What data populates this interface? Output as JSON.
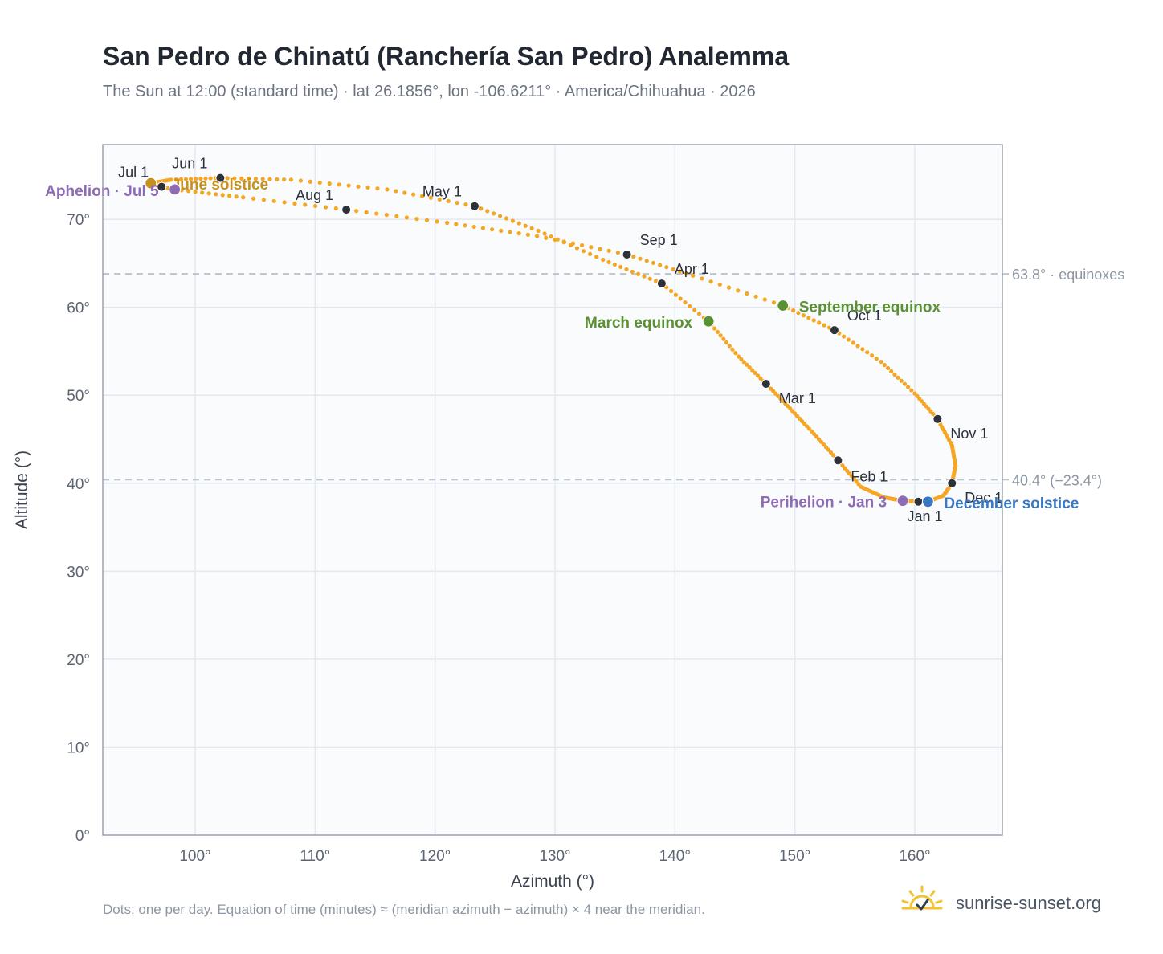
{
  "title": "San Pedro de Chinatú (Ranchería San Pedro) Analemma",
  "subtitle": "The Sun at 12:00 (standard time) · lat 26.1856°, lon -106.6211° · America/Chihuahua · 2026",
  "footnote": "Dots: one per day. Equation of time (minutes) ≈ (meridian azimuth − azimuth) × 4 near the meridian.",
  "brand": {
    "text": "sunrise-sunset.org",
    "icon": "sun-check-icon"
  },
  "chart_data": {
    "type": "scatter",
    "xlabel": "Azimuth (°)",
    "ylabel": "Altitude (°)",
    "xlim": [
      92.3,
      167.3
    ],
    "ylim": [
      0,
      78.5
    ],
    "x_ticks": [
      100,
      110,
      120,
      130,
      140,
      150,
      160
    ],
    "y_ticks": [
      0,
      10,
      20,
      30,
      40,
      50,
      60,
      70
    ],
    "tick_suffix": "°",
    "grid": true,
    "colors": {
      "path": "#f5a623",
      "month_marker": "#2d3139",
      "equinox": "#5a9132",
      "june_solstice": "#c8901c",
      "december_solstice": "#3a78c3",
      "apsis": "#8e6bb5",
      "reference_line": "#b8c4d0",
      "plot_background": "#f9fbfd",
      "frame": "#9aa5b4"
    },
    "reference_lines": [
      {
        "y": 63.8,
        "label": "63.8° · equinoxes"
      },
      {
        "y": 40.4,
        "label": "40.4° (−23.4°)"
      }
    ],
    "months": [
      {
        "label": "Jan 1",
        "az": 160.3,
        "alt": 37.9
      },
      {
        "label": "Feb 1",
        "az": 153.6,
        "alt": 42.6
      },
      {
        "label": "Mar 1",
        "az": 147.6,
        "alt": 51.3
      },
      {
        "label": "Apr 1",
        "az": 138.9,
        "alt": 62.7
      },
      {
        "label": "May 1",
        "az": 123.3,
        "alt": 71.5
      },
      {
        "label": "Jun 1",
        "az": 102.1,
        "alt": 74.7
      },
      {
        "label": "Jul 1",
        "az": 97.2,
        "alt": 73.7
      },
      {
        "label": "Aug 1",
        "az": 112.6,
        "alt": 71.1
      },
      {
        "label": "Sep 1",
        "az": 136.0,
        "alt": 66.0
      },
      {
        "label": "Oct 1",
        "az": 153.3,
        "alt": 57.4
      },
      {
        "label": "Nov 1",
        "az": 161.9,
        "alt": 47.3
      },
      {
        "label": "Dec 1",
        "az": 163.1,
        "alt": 40.0
      }
    ],
    "events": [
      {
        "label": "March equinox",
        "az": 142.8,
        "alt": 58.4,
        "color_key": "equinox"
      },
      {
        "label": "September equinox",
        "az": 149.0,
        "alt": 60.2,
        "color_key": "equinox"
      },
      {
        "label": "June solstice",
        "az": 96.3,
        "alt": 74.1,
        "color_key": "june_solstice"
      },
      {
        "label": "December solstice",
        "az": 161.1,
        "alt": 37.9,
        "color_key": "december_solstice"
      },
      {
        "label": "Aphelion · Jul 5",
        "az": 98.3,
        "alt": 73.4,
        "color_key": "apsis"
      },
      {
        "label": "Perihelion · Jan 3",
        "az": 159.0,
        "alt": 38.0,
        "color_key": "apsis"
      }
    ],
    "daily_path": [
      [
        160.3,
        37.9
      ],
      [
        159.0,
        38.0
      ],
      [
        157.4,
        38.4
      ],
      [
        155.5,
        39.6
      ],
      [
        153.6,
        42.6
      ],
      [
        151.6,
        45.6
      ],
      [
        149.6,
        48.5
      ],
      [
        147.6,
        51.3
      ],
      [
        145.3,
        54.4
      ],
      [
        142.8,
        58.4
      ],
      [
        138.9,
        62.7
      ],
      [
        134.0,
        65.4
      ],
      [
        128.6,
        68.7
      ],
      [
        123.3,
        71.5
      ],
      [
        116.0,
        73.4
      ],
      [
        108.0,
        74.5
      ],
      [
        102.1,
        74.7
      ],
      [
        98.0,
        74.5
      ],
      [
        96.3,
        74.1
      ],
      [
        97.2,
        73.7
      ],
      [
        98.3,
        73.4
      ],
      [
        104.0,
        72.5
      ],
      [
        112.6,
        71.1
      ],
      [
        121.0,
        69.6
      ],
      [
        128.5,
        68.1
      ],
      [
        136.0,
        66.0
      ],
      [
        141.5,
        63.6
      ],
      [
        149.0,
        60.2
      ],
      [
        153.3,
        57.4
      ],
      [
        157.2,
        53.8
      ],
      [
        160.0,
        50.2
      ],
      [
        161.9,
        47.3
      ],
      [
        163.1,
        44.3
      ],
      [
        163.4,
        42.0
      ],
      [
        163.1,
        40.0
      ],
      [
        162.4,
        38.6
      ],
      [
        161.1,
        37.9
      ],
      [
        160.3,
        37.9
      ]
    ]
  }
}
